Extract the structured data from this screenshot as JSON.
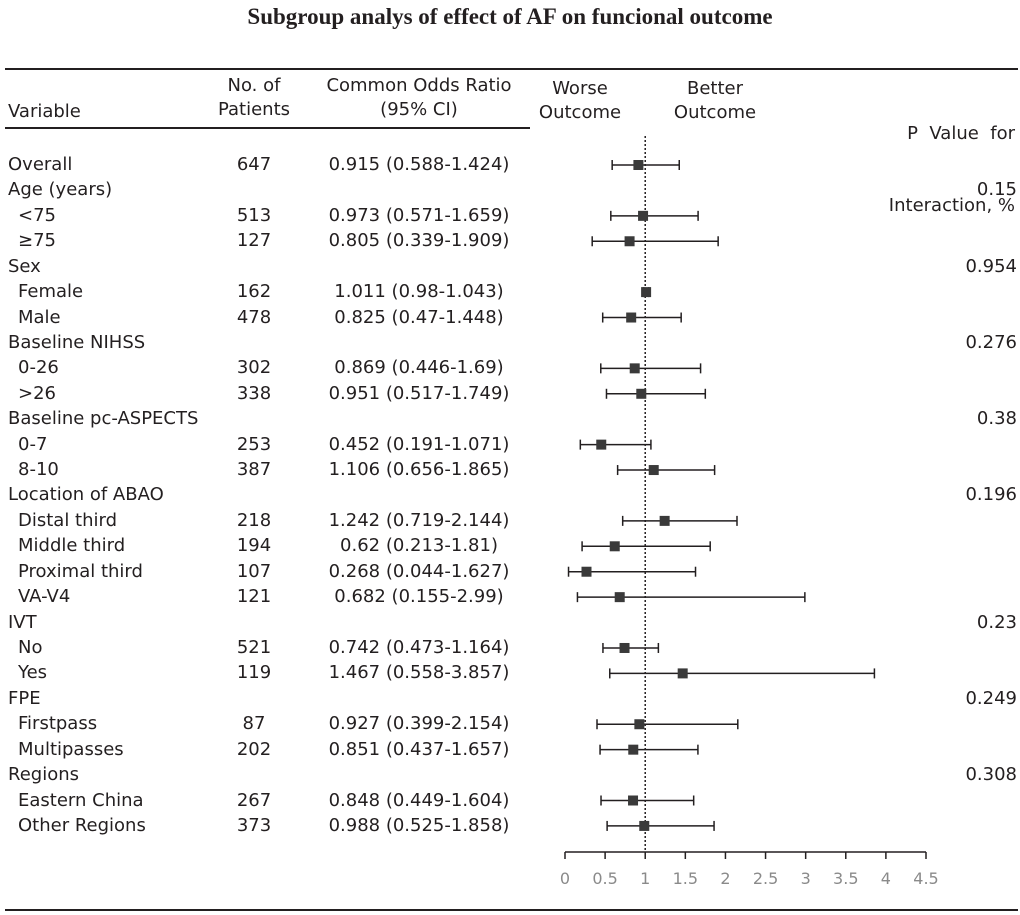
{
  "title": "Subgroup analys of effect of AF on funcional outcome",
  "header": {
    "variable": "Variable",
    "patients_line1": "No. of",
    "patients_line2": "Patients",
    "or_line1": "Common Odds Ratio",
    "or_line2": "(95% CI)",
    "worse_line1": "Worse",
    "worse_line2": "Outcome",
    "better_line1": "Better",
    "better_line2": "Outcome",
    "p_line1": "P  Value  for",
    "p_line2": "Interaction, %"
  },
  "chart_data": {
    "type": "forest",
    "title": "Subgroup analys of effect of AF on funcional outcome",
    "xlabel": "",
    "xlim": [
      0,
      4.5
    ],
    "xticks": [
      "0",
      "0.5",
      "1",
      "1.5",
      "2",
      "2.5",
      "3",
      "3.5",
      "4",
      "4.5"
    ],
    "reference_line": 1,
    "rows": [
      {
        "label": "Overall",
        "indent": false,
        "n": "647",
        "ci_text": "0.915 (0.588-1.424)",
        "or": 0.915,
        "lo": 0.588,
        "hi": 1.424,
        "p": ""
      },
      {
        "label": "Age (years)",
        "indent": false,
        "n": "",
        "ci_text": "",
        "or": null,
        "lo": null,
        "hi": null,
        "p": "0.15"
      },
      {
        "label": "<75",
        "indent": true,
        "n": "513",
        "ci_text": "0.973 (0.571-1.659)",
        "or": 0.973,
        "lo": 0.571,
        "hi": 1.659,
        "p": ""
      },
      {
        "label": "≥75",
        "indent": true,
        "n": "127",
        "ci_text": "0.805 (0.339-1.909)",
        "or": 0.805,
        "lo": 0.339,
        "hi": 1.909,
        "p": ""
      },
      {
        "label": "Sex",
        "indent": false,
        "n": "",
        "ci_text": "",
        "or": null,
        "lo": null,
        "hi": null,
        "p": "0.954"
      },
      {
        "label": "Female",
        "indent": true,
        "n": "162",
        "ci_text": "1.011 (0.98-1.043)",
        "or": 1.011,
        "lo": 0.98,
        "hi": 1.043,
        "p": ""
      },
      {
        "label": "Male",
        "indent": true,
        "n": "478",
        "ci_text": "0.825 (0.47-1.448)",
        "or": 0.825,
        "lo": 0.47,
        "hi": 1.448,
        "p": ""
      },
      {
        "label": "Baseline NIHSS",
        "indent": false,
        "n": "",
        "ci_text": "",
        "or": null,
        "lo": null,
        "hi": null,
        "p": "0.276"
      },
      {
        "label": "0-26",
        "indent": true,
        "n": "302",
        "ci_text": "0.869 (0.446-1.69)",
        "or": 0.869,
        "lo": 0.446,
        "hi": 1.69,
        "p": ""
      },
      {
        "label": ">26",
        "indent": true,
        "n": "338",
        "ci_text": "0.951 (0.517-1.749)",
        "or": 0.951,
        "lo": 0.517,
        "hi": 1.749,
        "p": ""
      },
      {
        "label": "Baseline pc-ASPECTS",
        "indent": false,
        "n": "",
        "ci_text": "",
        "or": null,
        "lo": null,
        "hi": null,
        "p": "0.38"
      },
      {
        "label": "0-7",
        "indent": true,
        "n": "253",
        "ci_text": "0.452 (0.191-1.071)",
        "or": 0.452,
        "lo": 0.191,
        "hi": 1.071,
        "p": ""
      },
      {
        "label": "8-10",
        "indent": true,
        "n": "387",
        "ci_text": "1.106 (0.656-1.865)",
        "or": 1.106,
        "lo": 0.656,
        "hi": 1.865,
        "p": ""
      },
      {
        "label": "Location of ABAO",
        "indent": false,
        "n": "",
        "ci_text": "",
        "or": null,
        "lo": null,
        "hi": null,
        "p": "0.196"
      },
      {
        "label": "Distal third",
        "indent": true,
        "n": "218",
        "ci_text": "1.242 (0.719-2.144)",
        "or": 1.242,
        "lo": 0.719,
        "hi": 2.144,
        "p": ""
      },
      {
        "label": "Middle third",
        "indent": true,
        "n": "194",
        "ci_text": "0.62 (0.213-1.81)",
        "or": 0.62,
        "lo": 0.213,
        "hi": 1.81,
        "p": ""
      },
      {
        "label": "Proximal third",
        "indent": true,
        "n": "107",
        "ci_text": "0.268 (0.044-1.627)",
        "or": 0.268,
        "lo": 0.044,
        "hi": 1.627,
        "p": ""
      },
      {
        "label": "VA-V4",
        "indent": true,
        "n": "121",
        "ci_text": "0.682 (0.155-2.99)",
        "or": 0.682,
        "lo": 0.155,
        "hi": 2.99,
        "p": ""
      },
      {
        "label": "IVT",
        "indent": false,
        "n": "",
        "ci_text": "",
        "or": null,
        "lo": null,
        "hi": null,
        "p": "0.23"
      },
      {
        "label": "No",
        "indent": true,
        "n": "521",
        "ci_text": "0.742 (0.473-1.164)",
        "or": 0.742,
        "lo": 0.473,
        "hi": 1.164,
        "p": ""
      },
      {
        "label": "Yes",
        "indent": true,
        "n": "119",
        "ci_text": "1.467 (0.558-3.857)",
        "or": 1.467,
        "lo": 0.558,
        "hi": 3.857,
        "p": ""
      },
      {
        "label": "FPE",
        "indent": false,
        "n": "",
        "ci_text": "",
        "or": null,
        "lo": null,
        "hi": null,
        "p": "0.249"
      },
      {
        "label": "Firstpass",
        "indent": true,
        "n": "87",
        "ci_text": "0.927 (0.399-2.154)",
        "or": 0.927,
        "lo": 0.399,
        "hi": 2.154,
        "p": ""
      },
      {
        "label": "Multipasses",
        "indent": true,
        "n": "202",
        "ci_text": "0.851 (0.437-1.657)",
        "or": 0.851,
        "lo": 0.437,
        "hi": 1.657,
        "p": ""
      },
      {
        "label": "Regions",
        "indent": false,
        "n": "",
        "ci_text": "",
        "or": null,
        "lo": null,
        "hi": null,
        "p": "0.308"
      },
      {
        "label": "Eastern China",
        "indent": true,
        "n": "267",
        "ci_text": "0.848 (0.449-1.604)",
        "or": 0.848,
        "lo": 0.449,
        "hi": 1.604,
        "p": ""
      },
      {
        "label": "Other Regions",
        "indent": true,
        "n": "373",
        "ci_text": "0.988 (0.525-1.858)",
        "or": 0.988,
        "lo": 0.525,
        "hi": 1.858,
        "p": ""
      }
    ]
  }
}
